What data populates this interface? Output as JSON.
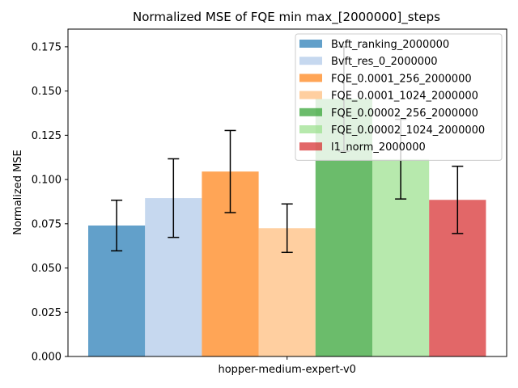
{
  "chart_data": {
    "type": "bar",
    "title": "Normalized MSE of FQE min max_[2000000]_steps",
    "xlabel": "",
    "ylabel": "Normalized MSE",
    "categories": [
      "hopper-medium-expert-v0"
    ],
    "ylim": [
      0,
      0.185
    ],
    "yticks": [
      0.0,
      0.025,
      0.05,
      0.075,
      0.1,
      0.125,
      0.15,
      0.175
    ],
    "ytick_labels": [
      "0.000",
      "0.025",
      "0.050",
      "0.075",
      "0.100",
      "0.125",
      "0.150",
      "0.175"
    ],
    "legend_position": "upper right",
    "grid": false,
    "series": [
      {
        "name": "Bvft_ranking_2000000",
        "values": [
          0.074
        ],
        "error": [
          0.0143
        ],
        "color": "#1f77b4",
        "alpha": 0.7
      },
      {
        "name": "Bvft_res_0_2000000",
        "values": [
          0.0895
        ],
        "error": [
          0.0222
        ],
        "color": "#aec7e8",
        "alpha": 0.7
      },
      {
        "name": "FQE_0.0001_256_2000000",
        "values": [
          0.1045
        ],
        "error": [
          0.0232
        ],
        "color": "#ff7f0e",
        "alpha": 0.7
      },
      {
        "name": "FQE_0.0001_1024_2000000",
        "values": [
          0.0725
        ],
        "error": [
          0.0137
        ],
        "color": "#ffbb78",
        "alpha": 0.7
      },
      {
        "name": "FQE_0.00002_256_2000000",
        "values": [
          0.1455
        ],
        "error": [
          0.0295
        ],
        "color": "#2ca02c",
        "alpha": 0.7
      },
      {
        "name": "FQE_0.00002_1024_2000000",
        "values": [
          0.1115
        ],
        "error": [
          0.0225
        ],
        "color": "#98df8a",
        "alpha": 0.7
      },
      {
        "name": "l1_norm_2000000",
        "values": [
          0.0885
        ],
        "error": [
          0.019
        ],
        "color": "#d62728",
        "alpha": 0.7
      }
    ]
  }
}
